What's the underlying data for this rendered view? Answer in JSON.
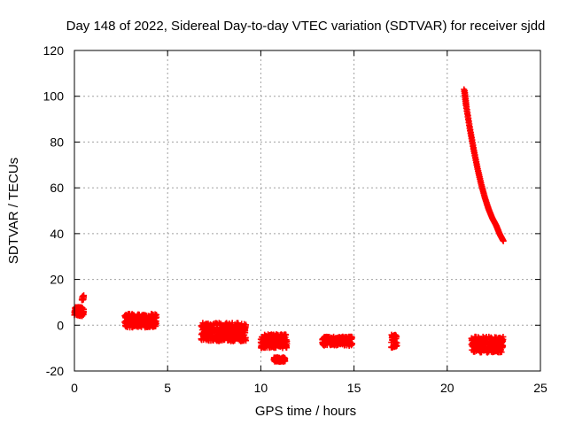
{
  "chart_data": {
    "type": "scatter",
    "title": "Day 148 of 2022, Sidereal Day-to-day VTEC variation (SDTVAR) for receiver sjdd",
    "xlabel": "GPS time / hours",
    "ylabel": "SDTVAR / TECUs",
    "xlim": [
      0,
      25
    ],
    "ylim": [
      -20,
      120
    ],
    "xticks": [
      0,
      5,
      10,
      15,
      20,
      25
    ],
    "yticks": [
      -20,
      0,
      20,
      40,
      60,
      80,
      100,
      120
    ],
    "grid": true,
    "marker": "+",
    "color": "#ff0000",
    "series": [
      {
        "name": "SDTVAR",
        "clusters": [
          {
            "x": [
              0.0,
              0.5
            ],
            "y_low": 4,
            "y_high": 8,
            "note": "near-start arc"
          },
          {
            "x": [
              0.4,
              0.5
            ],
            "y_low": 11,
            "y_high": 13
          },
          {
            "x": [
              2.7,
              4.4
            ],
            "y_low": -1,
            "y_high": 5
          },
          {
            "x": [
              6.8,
              9.2
            ],
            "y_low": -7,
            "y_high": 1
          },
          {
            "x": [
              10.0,
              11.4
            ],
            "y_low": -10,
            "y_high": -4
          },
          {
            "x": [
              10.7,
              11.3
            ],
            "y_low": -16,
            "y_high": -14
          },
          {
            "x": [
              13.3,
              14.9
            ],
            "y_low": -9,
            "y_high": -5
          },
          {
            "x": [
              17.0,
              17.3
            ],
            "y_low": -10,
            "y_high": -4
          },
          {
            "x": [
              21.3,
              23.0
            ],
            "y_low": -12,
            "y_high": -5
          }
        ],
        "curve": {
          "x": [
            20.9,
            21.0,
            21.2,
            21.4,
            21.6,
            21.8,
            22.0,
            22.2,
            22.4,
            22.6,
            22.8,
            23.0
          ],
          "y": [
            103,
            96,
            86,
            77,
            69,
            62,
            56,
            51,
            47,
            44,
            40,
            37
          ]
        }
      }
    ]
  }
}
